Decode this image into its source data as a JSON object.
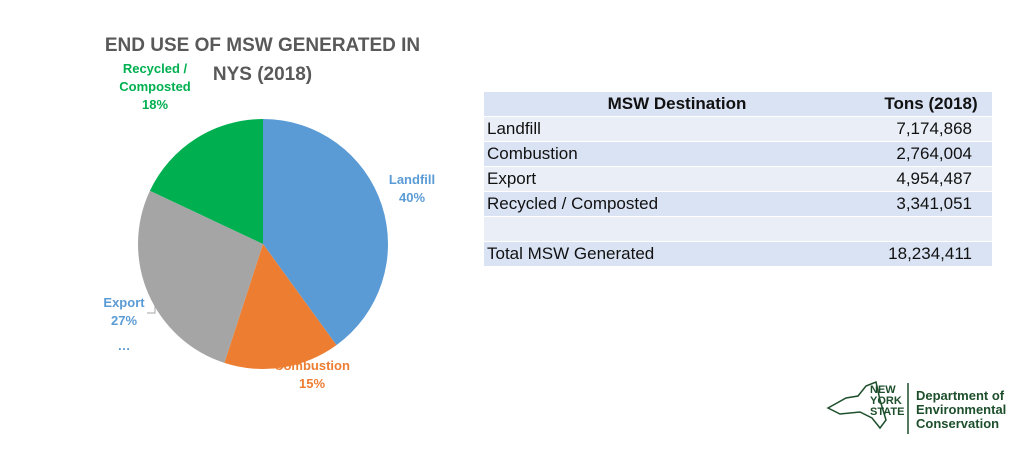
{
  "chart_data": {
    "type": "pie",
    "title": "END USE OF MSW GENERATED IN NYS (2018)",
    "categories": [
      "Landfill",
      "Combustion",
      "Export",
      "Recycled / Composted"
    ],
    "values": [
      40,
      15,
      27,
      18
    ],
    "value_labels": [
      "40%",
      "15%",
      "27%",
      "18%"
    ],
    "colors": [
      "#5b9bd5",
      "#ed7d31",
      "#a5a5a5",
      "#00b050"
    ],
    "label_colors": [
      "#5b9bd5",
      "#ed7d31",
      "#5b9bd5",
      "#00b050"
    ],
    "annotation": "…"
  },
  "table": {
    "header": [
      "MSW Destination",
      "Tons (2018)"
    ],
    "rows": [
      [
        "Landfill",
        "7,174,868"
      ],
      [
        "Combustion",
        "2,764,004"
      ],
      [
        "Export",
        "4,954,487"
      ],
      [
        "Recycled / Composted",
        "3,341,051"
      ]
    ],
    "total": [
      "Total MSW Generated",
      "18,234,411"
    ]
  },
  "logo": {
    "state": [
      "NEW",
      "YORK",
      "STATE"
    ],
    "department": [
      "Department of",
      "Environmental",
      "Conservation"
    ]
  }
}
